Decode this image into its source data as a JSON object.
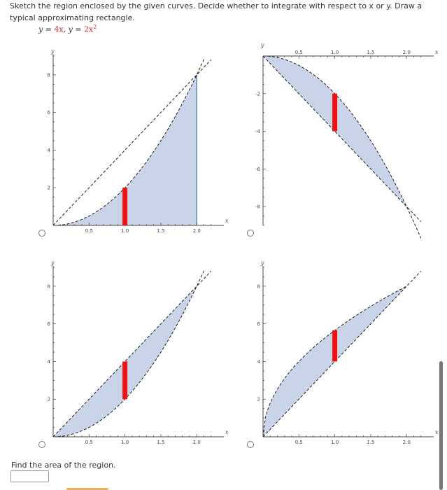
{
  "prompt": {
    "text": "Sketch the region enclosed by the given curves. Decide whether to integrate with respect to x or y. Draw a typical approximating rectangle."
  },
  "equation": {
    "y1_prefix": "y = ",
    "y1_value": "4x",
    "separator": ",  y = ",
    "y2_value": "2x",
    "y2_exponent": "2"
  },
  "colors": {
    "region_fill": "#c9d4e8",
    "region_stroke": "#4a6cb0",
    "rectangle": "#ee1111",
    "curve": "#222222"
  },
  "find": {
    "label": "Find the area of the region.",
    "answer_value": ""
  },
  "chart_data": [
    {
      "type": "line",
      "id": "option-1",
      "xlabel": "x",
      "ylabel": "y",
      "xlim": [
        0,
        2.3
      ],
      "ylim": [
        0,
        9
      ],
      "x_ticks": [
        "0.5",
        "1.0",
        "1.5",
        "2.0"
      ],
      "y_ticks": [
        "2",
        "4",
        "6",
        "8"
      ],
      "series": [
        {
          "function": "4x",
          "x": [
            0,
            2.2
          ],
          "y": [
            0,
            8.8
          ]
        },
        {
          "function": "2x^2",
          "x": [
            0,
            0.5,
            1,
            1.5,
            2,
            2.1
          ],
          "y": [
            0,
            0.5,
            2,
            4.5,
            8,
            8.82
          ]
        }
      ],
      "shaded_region": "between y=2x^2 and y=0, with vertical line at x=2",
      "rectangle": {
        "x": 1.0,
        "y_from": 0,
        "y_to": 2
      }
    },
    {
      "type": "line",
      "id": "option-2",
      "xlabel": "x",
      "ylabel": "y",
      "xlim": [
        0,
        2.3
      ],
      "ylim": [
        -9,
        0
      ],
      "x_ticks": [
        "0.5",
        "1.0",
        "1.5",
        "2.0"
      ],
      "y_ticks": [
        "-2",
        "-4",
        "-6",
        "-8"
      ],
      "series": [
        {
          "function": "-4x",
          "x": [
            0,
            2.2
          ],
          "y": [
            0,
            -8.8
          ]
        },
        {
          "function": "-2x^2",
          "x": [
            0,
            0.5,
            1,
            1.5,
            2,
            2.2
          ],
          "y": [
            0,
            -0.5,
            -2,
            -4.5,
            -8,
            -9.68
          ]
        }
      ],
      "shaded_region": "between y=-2x^2 and y=-4x",
      "rectangle": {
        "x": 1.0,
        "y_from": -4,
        "y_to": -2
      }
    },
    {
      "type": "line",
      "id": "option-3",
      "xlabel": "x",
      "ylabel": "y",
      "xlim": [
        0,
        2.3
      ],
      "ylim": [
        0,
        9
      ],
      "x_ticks": [
        "0.5",
        "1.0",
        "1.5",
        "2.0"
      ],
      "y_ticks": [
        "2",
        "4",
        "6",
        "8"
      ],
      "series": [
        {
          "function": "4x",
          "x": [
            0,
            2.2
          ],
          "y": [
            0,
            8.8
          ]
        },
        {
          "function": "2x^2",
          "x": [
            0,
            0.5,
            1,
            1.5,
            2,
            2.1
          ],
          "y": [
            0,
            0.5,
            2,
            4.5,
            8,
            8.82
          ]
        }
      ],
      "shaded_region": "between y=2x^2 and y=4x",
      "rectangle": {
        "x": 1.0,
        "y_from": 2,
        "y_to": 4
      }
    },
    {
      "type": "line",
      "id": "option-4",
      "xlabel": "x",
      "ylabel": "y",
      "xlim": [
        0,
        2.3
      ],
      "ylim": [
        0,
        9
      ],
      "x_ticks": [
        "0.5",
        "1.0",
        "1.5",
        "2.0"
      ],
      "y_ticks": [
        "2",
        "4",
        "6",
        "8"
      ],
      "series": [
        {
          "function": "4x",
          "x": [
            0,
            2.2
          ],
          "y": [
            0,
            8.8
          ]
        },
        {
          "function": "4*sqrt(2x)",
          "x": [
            0,
            0.5,
            1,
            1.5,
            2
          ],
          "y": [
            0,
            4,
            5.66,
            6.93,
            8
          ]
        }
      ],
      "shaded_region": "between y=4x and y=4*sqrt(2x)",
      "rectangle": {
        "x": 1.0,
        "y_from": 4,
        "y_to": 5.66
      }
    }
  ]
}
